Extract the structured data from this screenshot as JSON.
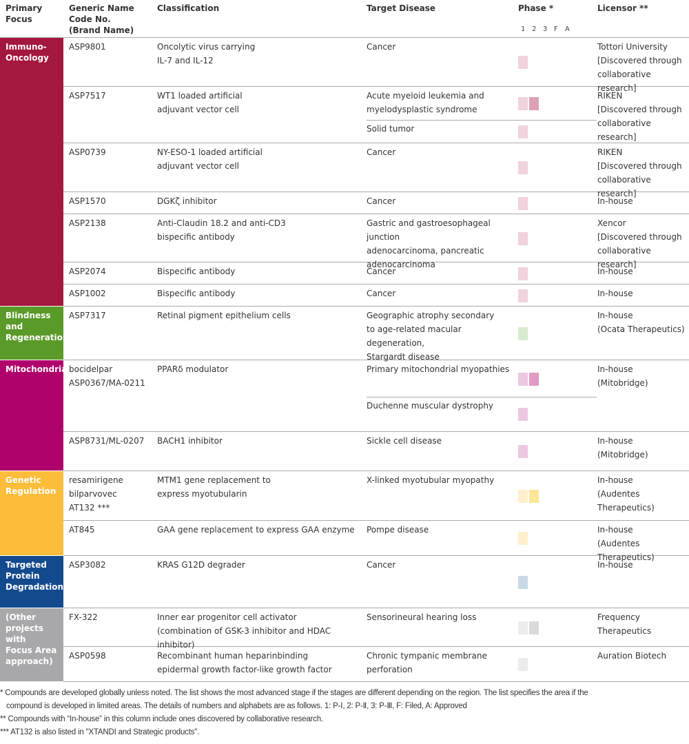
{
  "header": {
    "focus": "Primary\nFocus",
    "generic": "Generic Name\nCode No.\n(Brand Name)",
    "classification": "Classification",
    "disease": "Target Disease",
    "phase": "Phase *",
    "licensor": "Licensor **",
    "phase_labels": [
      "1",
      "2",
      "3",
      "F",
      "A"
    ]
  },
  "groups": [
    {
      "label": "Immuno-\nOncology",
      "color": "#a4173f",
      "light": "#f0d3dc",
      "dark": "#dca2b2"
    },
    {
      "label": "Blindness\nand\nRegeneration",
      "color": "#5a9a28",
      "light": "#d8ebd0",
      "dark": "#b5d8a5"
    },
    {
      "label": "Mitochondria",
      "color": "#b0006b",
      "light": "#ecc9e0",
      "dark": "#e29ac5"
    },
    {
      "label": "Genetic\nRegulation",
      "color": "#fbbd3a",
      "light": "#fff0cd",
      "dark": "#ffe597"
    },
    {
      "label": "Targeted\nProtein\nDegradation",
      "color": "#134a8e",
      "light": "#cbd8e7",
      "dark": "#a9bfd7"
    },
    {
      "label": "(Other\nprojects with\nFocus Area\napproach)",
      "color": "#a8a8ab",
      "light": "#ebeced",
      "dark": "#dadadc"
    }
  ],
  "rows": [
    {
      "group": 0,
      "code": "ASP9801",
      "classification": "Oncolytic virus carrying\nIL-7 and IL-12",
      "diseases": [
        {
          "name": "Cancer",
          "phase": 1
        }
      ],
      "licensor": "Tottori University\n[Discovered through\ncollaborative research]"
    },
    {
      "group": 0,
      "code": "ASP7517",
      "classification": "WT1 loaded artificial\nadjuvant vector cell",
      "diseases": [
        {
          "name": "Acute myeloid leukemia and\nmyelodysplastic syndrome",
          "phase": 2
        },
        {
          "name": "Solid tumor",
          "phase": 1
        }
      ],
      "licensor": "RIKEN\n[Discovered through\ncollaborative research]"
    },
    {
      "group": 0,
      "code": "ASP0739",
      "classification": "NY-ESO-1 loaded artificial\nadjuvant vector cell",
      "diseases": [
        {
          "name": "Cancer",
          "phase": 1
        }
      ],
      "licensor": "RIKEN\n[Discovered through\ncollaborative research]"
    },
    {
      "group": 0,
      "code": "ASP1570",
      "classification": "DGKζ inhibitor",
      "diseases": [
        {
          "name": "Cancer",
          "phase": 1
        }
      ],
      "licensor": "In-house"
    },
    {
      "group": 0,
      "code": "ASP2138",
      "classification": "Anti-Claudin 18.2 and anti-CD3\nbispecific antibody",
      "diseases": [
        {
          "name": "Gastric and gastroesophageal junction\nadenocarcinoma, pancreatic\nadenocarcinoma",
          "phase": 1
        }
      ],
      "licensor": "Xencor\n[Discovered through\ncollaborative research]"
    },
    {
      "group": 0,
      "code": "ASP2074",
      "classification": "Bispecific antibody",
      "diseases": [
        {
          "name": "Cancer",
          "phase": 1
        }
      ],
      "licensor": "In-house"
    },
    {
      "group": 0,
      "code": "ASP1002",
      "classification": "Bispecific antibody",
      "diseases": [
        {
          "name": "Cancer",
          "phase": 1
        }
      ],
      "licensor": "In-house"
    },
    {
      "group": 1,
      "code": "ASP7317",
      "classification": "Retinal pigment epithelium cells",
      "diseases": [
        {
          "name": "Geographic atrophy secondary\nto age-related macular degeneration,\nStargardt disease",
          "phase": 1
        }
      ],
      "licensor": "In-house\n(Ocata Therapeutics)"
    },
    {
      "group": 2,
      "code": "bocidelpar\nASP0367/MA-0211",
      "classification": "PPARδ modulator",
      "diseases": [
        {
          "name": "Primary mitochondrial myopathies",
          "phase": 2
        },
        {
          "name": "Duchenne muscular dystrophy",
          "phase": 1
        }
      ],
      "licensor": "In-house\n(Mitobridge)"
    },
    {
      "group": 2,
      "code": "ASP8731/ML-0207",
      "classification": "BACH1 inhibitor",
      "diseases": [
        {
          "name": "Sickle cell disease",
          "phase": 1
        }
      ],
      "licensor": "In-house\n(Mitobridge)"
    },
    {
      "group": 3,
      "code": "resamirigene\nbilparvovec\nAT132 ***",
      "classification": "MTM1 gene replacement to\nexpress myotubularin",
      "diseases": [
        {
          "name": "X-linked myotubular myopathy",
          "phase": 2
        }
      ],
      "licensor": "In-house\n(Audentes Therapeutics)"
    },
    {
      "group": 3,
      "code": "AT845",
      "classification": "GAA gene replacement to express GAA enzyme",
      "diseases": [
        {
          "name": "Pompe disease",
          "phase": 1
        }
      ],
      "licensor": "In-house\n(Audentes Therapeutics)"
    },
    {
      "group": 4,
      "code": "ASP3082",
      "classification": "KRAS G12D degrader",
      "diseases": [
        {
          "name": "Cancer",
          "phase": 1
        }
      ],
      "licensor": "In-house"
    },
    {
      "group": 5,
      "code": "FX-322",
      "classification": "Inner ear progenitor cell activator\n(combination of GSK-3 inhibitor and HDAC inhibitor)",
      "diseases": [
        {
          "name": "Sensorineural hearing loss",
          "phase": 2
        }
      ],
      "licensor": "Frequency\nTherapeutics"
    },
    {
      "group": 5,
      "code": "ASP0598",
      "classification": "Recombinant human heparinbinding\nepidermal growth factor-like growth factor",
      "diseases": [
        {
          "name": "Chronic tympanic membrane\nperforation",
          "phase": 1
        }
      ],
      "licensor": "Auration Biotech"
    }
  ],
  "notes": [
    "* Compounds are developed globally unless noted. The list shows the most advanced stage if the stages are different depending on the region. The list specifies the area if the\n   compound is developed in limited areas. The details of numbers and alphabets are as follows. 1: P-Ⅰ, 2: P-Ⅱ, 3: P-Ⅲ, F: Filed, A: Approved",
    "** Compounds with “In-house” in this column include ones discovered by collaborative research.",
    "*** AT132 is also listed in \"XTANDI and Strategic products\"."
  ]
}
